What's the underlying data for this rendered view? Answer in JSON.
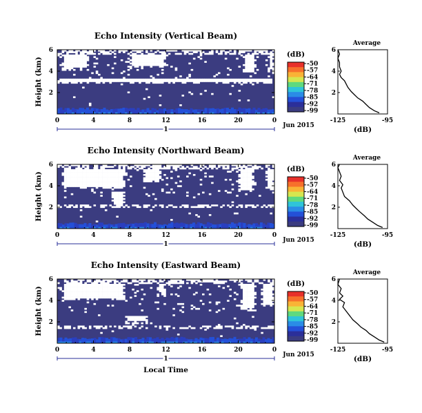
{
  "chart_data": [
    {
      "type": "heatmap",
      "title": "Echo Intensity (Vertical Beam)",
      "ylabel": "Height (km)",
      "xlabel": "",
      "x_ticks": [
        "0",
        "4",
        "8",
        "12",
        "16",
        "20",
        "0"
      ],
      "y_ticks": [
        "6",
        "4",
        "2"
      ],
      "xlim": [
        0,
        24
      ],
      "ylim": [
        0,
        6
      ],
      "day_marker": "1",
      "date_label": "Jun 2015",
      "colorbar": {
        "unit": "(dB)",
        "ticks": [
          "-50",
          "-57",
          "-64",
          "-71",
          "-78",
          "-85",
          "-92",
          "-99"
        ],
        "colors": [
          "#e8302a",
          "#f7702b",
          "#f9b336",
          "#d6e64f",
          "#5fd97e",
          "#2fc4d9",
          "#2a8ce6",
          "#2450d8",
          "#2b2f9a",
          "#3b3c80"
        ]
      },
      "profile": {
        "title": "Average",
        "xlabel": "(dB)",
        "x_ticks": [
          "-125",
          "-95"
        ],
        "y_ticks": [
          "6",
          "4",
          "2"
        ],
        "xlim": [
          -125,
          -95
        ],
        "ylim": [
          0,
          6
        ],
        "points": [
          [
            -100,
            0.1
          ],
          [
            -103,
            0.3
          ],
          [
            -106,
            0.6
          ],
          [
            -108,
            0.9
          ],
          [
            -110,
            1.2
          ],
          [
            -113,
            1.5
          ],
          [
            -115,
            1.8
          ],
          [
            -117,
            2.1
          ],
          [
            -119,
            2.5
          ],
          [
            -120,
            2.8
          ],
          [
            -121,
            3.1
          ],
          [
            -123,
            3.4
          ],
          [
            -124,
            3.7
          ],
          [
            -123,
            4.0
          ],
          [
            -124,
            4.4
          ],
          [
            -124,
            4.8
          ],
          [
            -125,
            5.2
          ],
          [
            -124,
            5.6
          ],
          [
            -125,
            6.0
          ]
        ]
      }
    },
    {
      "type": "heatmap",
      "title": "Echo Intensity (Northward Beam)",
      "ylabel": "Height (km)",
      "xlabel": "",
      "x_ticks": [
        "0",
        "4",
        "8",
        "12",
        "16",
        "20",
        "0"
      ],
      "y_ticks": [
        "6",
        "4",
        "2"
      ],
      "xlim": [
        0,
        24
      ],
      "ylim": [
        0,
        6
      ],
      "day_marker": "1",
      "date_label": "Jun 2015",
      "colorbar": {
        "unit": "(dB)",
        "ticks": [
          "-50",
          "-57",
          "-64",
          "-71",
          "-78",
          "-85",
          "-92",
          "-99"
        ],
        "colors": [
          "#e8302a",
          "#f7702b",
          "#f9b336",
          "#d6e64f",
          "#5fd97e",
          "#2fc4d9",
          "#2a8ce6",
          "#2450d8",
          "#2b2f9a",
          "#3b3c80"
        ]
      },
      "profile": {
        "title": "Average",
        "xlabel": "(dB)",
        "x_ticks": [
          "-125",
          "-95"
        ],
        "y_ticks": [
          "6",
          "4",
          "2"
        ],
        "xlim": [
          -125,
          -95
        ],
        "ylim": [
          0,
          6
        ],
        "points": [
          [
            -98,
            0.1
          ],
          [
            -101,
            0.3
          ],
          [
            -104,
            0.6
          ],
          [
            -107,
            0.9
          ],
          [
            -109,
            1.2
          ],
          [
            -112,
            1.6
          ],
          [
            -114,
            1.9
          ],
          [
            -116,
            2.2
          ],
          [
            -118,
            2.6
          ],
          [
            -121,
            3.0
          ],
          [
            -122,
            3.4
          ],
          [
            -123,
            3.8
          ],
          [
            -122,
            4.1
          ],
          [
            -124,
            4.5
          ],
          [
            -123,
            4.9
          ],
          [
            -124,
            5.3
          ],
          [
            -125,
            5.7
          ],
          [
            -124,
            6.0
          ]
        ]
      }
    },
    {
      "type": "heatmap",
      "title": "Echo Intensity (Eastward Beam)",
      "ylabel": "Height (km)",
      "xlabel": "Local Time",
      "x_ticks": [
        "0",
        "4",
        "8",
        "12",
        "16",
        "20",
        "0"
      ],
      "y_ticks": [
        "6",
        "4",
        "2"
      ],
      "xlim": [
        0,
        24
      ],
      "ylim": [
        0,
        6
      ],
      "day_marker": "1",
      "date_label": "Jun 2015",
      "colorbar": {
        "unit": "(dB)",
        "ticks": [
          "-50",
          "-57",
          "-64",
          "-71",
          "-78",
          "-85",
          "-92",
          "-99"
        ],
        "colors": [
          "#e8302a",
          "#f7702b",
          "#f9b336",
          "#d6e64f",
          "#5fd97e",
          "#2fc4d9",
          "#2a8ce6",
          "#2450d8",
          "#2b2f9a",
          "#3b3c80"
        ]
      },
      "profile": {
        "title": "Average",
        "xlabel": "(dB)",
        "x_ticks": [
          "-125",
          "-95"
        ],
        "y_ticks": [
          "6",
          "4",
          "2"
        ],
        "xlim": [
          -125,
          -95
        ],
        "ylim": [
          0,
          6
        ],
        "points": [
          [
            -97,
            0.1
          ],
          [
            -100,
            0.3
          ],
          [
            -103,
            0.6
          ],
          [
            -106,
            0.9
          ],
          [
            -108,
            1.2
          ],
          [
            -111,
            1.5
          ],
          [
            -113,
            1.8
          ],
          [
            -116,
            2.2
          ],
          [
            -118,
            2.6
          ],
          [
            -120,
            3.0
          ],
          [
            -122,
            3.4
          ],
          [
            -121,
            3.8
          ],
          [
            -124,
            4.1
          ],
          [
            -122,
            4.4
          ],
          [
            -124,
            4.7
          ],
          [
            -123,
            5.1
          ],
          [
            -125,
            5.5
          ],
          [
            -124,
            6.0
          ]
        ]
      }
    }
  ]
}
